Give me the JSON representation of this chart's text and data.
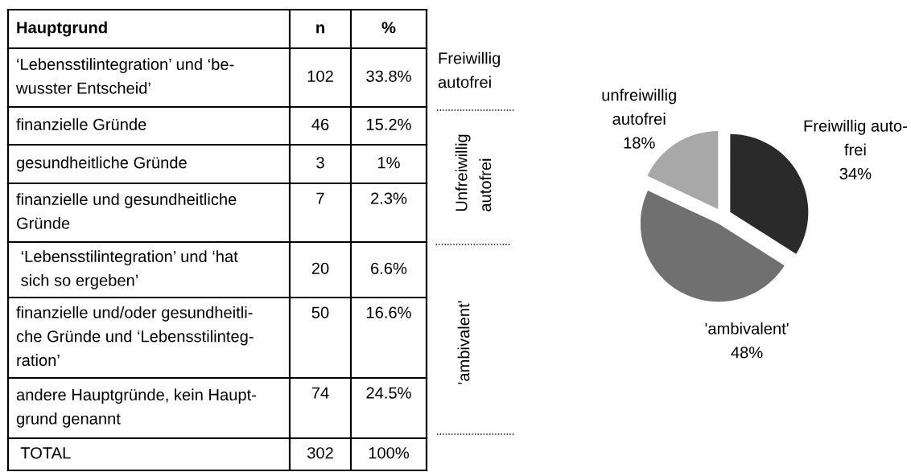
{
  "chart_data": [
    {
      "type": "other",
      "annotations": [
        "Hauptgrund",
        "n",
        "%",
        "‘Lebensstilintegration’ und ‘be-\nwusster Entscheid’",
        "102",
        "33.8%",
        "finanzielle Gründe",
        "46",
        "15.2%",
        "gesundheitliche Gründe",
        "3",
        "1%",
        "finanzielle und gesundheitliche\nGründe",
        "7",
        "2.3%",
        " ‘Lebensstilintegration’ und ‘hat\n sich so ergeben’",
        "20",
        "6.6%",
        "finanzielle und/oder gesundheitli-\nche Gründe und ‘Lebensstilinteg-\nration’",
        "50",
        "16.6%",
        "andere Hauptgründe, kein Haupt-\ngrund genannt",
        "74",
        "24.5%",
        " TOTAL",
        "302",
        "100%"
      ]
    },
    {
      "type": "other",
      "annotations": [
        "Freiwillig\nautofrei",
        "Unfreiwillig\nautofrei",
        "'ambivalent'"
      ]
    },
    {
      "type": "pie",
      "categories": [
        "Freiwillig auto-\nfrei",
        "'ambivalent'",
        "unfreiwillig\nautofrei"
      ],
      "values": [
        34,
        48,
        18
      ],
      "colors": [
        "#2a2a2a",
        "#707070",
        "#a8a8a8"
      ],
      "value_labels": [
        "34%",
        "48%",
        "18%"
      ]
    }
  ]
}
